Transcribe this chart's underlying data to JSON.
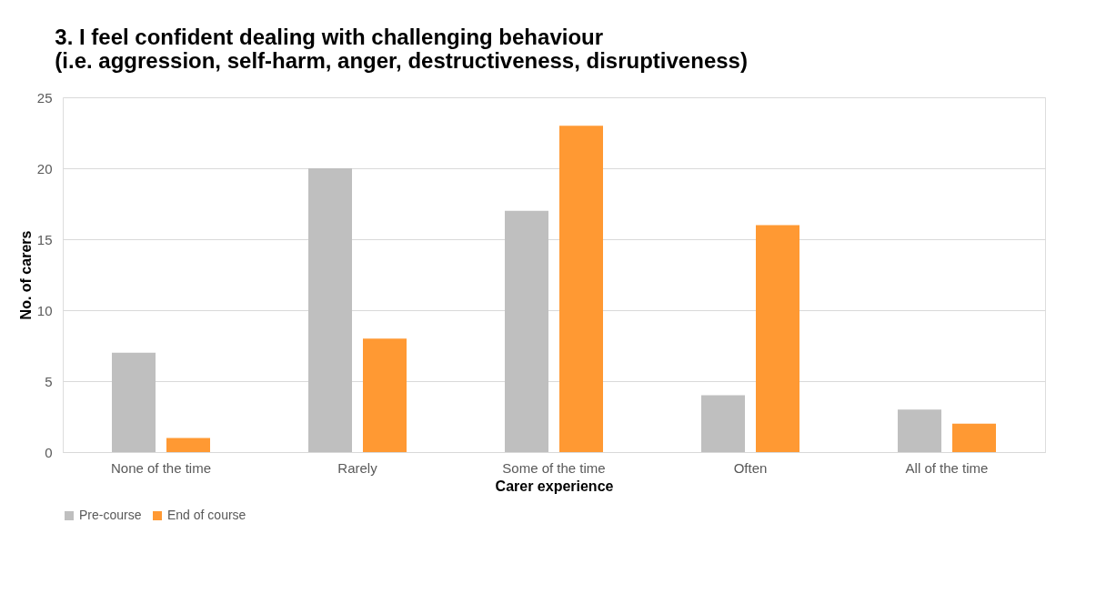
{
  "chart_data": {
    "type": "bar",
    "title": "3. I feel confident dealing with challenging behaviour\n(i.e. aggression, self-harm, anger, destructiveness, disruptiveness)",
    "xlabel": "Carer experience",
    "ylabel": "No. of carers",
    "categories": [
      "None of the time",
      "Rarely",
      "Some of the time",
      "Often",
      "All of the time"
    ],
    "series": [
      {
        "name": "Pre-course",
        "color": "#bfbfbf",
        "values": [
          7,
          20,
          17,
          4,
          3
        ]
      },
      {
        "name": "End of course",
        "color": "#ff9933",
        "values": [
          1,
          8,
          23,
          16,
          2
        ]
      }
    ],
    "ylim": [
      0,
      25
    ],
    "yticks": [
      0,
      5,
      10,
      15,
      20,
      25
    ],
    "grid": "y",
    "legend": "bottom"
  }
}
